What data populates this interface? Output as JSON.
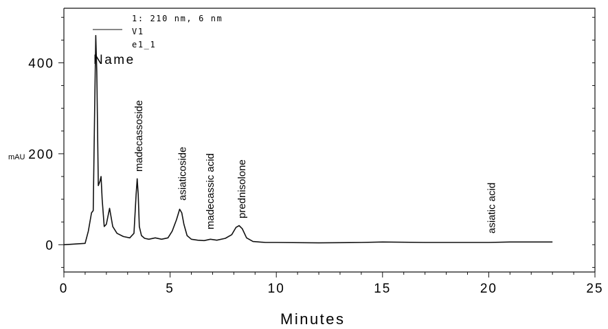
{
  "chart_data": {
    "type": "line",
    "title": "",
    "xlabel": "Minutes",
    "ylabel": "mAU",
    "xlim": [
      0,
      25
    ],
    "ylim": [
      -60,
      520
    ],
    "grid": false,
    "x_ticks": [
      "0",
      "5",
      "10",
      "15",
      "20",
      "25"
    ],
    "y_ticks": [
      "0",
      "200",
      "400"
    ],
    "x_tick_values": [
      0,
      5,
      10,
      15,
      20,
      25
    ],
    "y_tick_values": [
      0,
      200,
      400
    ],
    "legend": {
      "lines": [
        "1: 210 nm, 6 nm",
        "V1",
        "e1_1"
      ],
      "placement": "top-left"
    },
    "name_label": "Name",
    "series": [
      {
        "name": "V1",
        "x": [
          0.0,
          1.0,
          1.15,
          1.3,
          1.38,
          1.45,
          1.5,
          1.55,
          1.62,
          1.7,
          1.75,
          1.8,
          1.9,
          2.0,
          2.15,
          2.3,
          2.5,
          2.8,
          3.1,
          3.3,
          3.4,
          3.45,
          3.5,
          3.55,
          3.65,
          3.8,
          4.0,
          4.3,
          4.6,
          4.9,
          5.1,
          5.3,
          5.45,
          5.55,
          5.65,
          5.8,
          6.0,
          6.3,
          6.6,
          6.9,
          7.2,
          7.6,
          7.9,
          8.1,
          8.25,
          8.4,
          8.6,
          8.9,
          9.5,
          10.0,
          12.0,
          14.0,
          15.0,
          17.0,
          18.5,
          20.0,
          21.0,
          22.0,
          23.0
        ],
        "values": [
          0,
          3,
          30,
          70,
          75,
          300,
          460,
          380,
          130,
          140,
          150,
          100,
          40,
          45,
          80,
          40,
          25,
          18,
          15,
          25,
          110,
          145,
          110,
          40,
          20,
          14,
          12,
          15,
          12,
          15,
          30,
          55,
          78,
          70,
          45,
          20,
          12,
          10,
          9,
          12,
          10,
          14,
          22,
          38,
          42,
          35,
          15,
          7,
          5,
          5,
          4,
          5,
          6,
          5,
          5,
          5,
          6,
          6,
          6
        ]
      }
    ],
    "annotations": [
      {
        "text": "madecassoside",
        "x": 3.5
      },
      {
        "text": "asiaticoside",
        "x": 5.55
      },
      {
        "text": "madecassic acid",
        "x": 6.85
      },
      {
        "text": "prednisolone",
        "x": 8.35
      },
      {
        "text": "asiatic acid",
        "x": 20.1
      }
    ]
  }
}
